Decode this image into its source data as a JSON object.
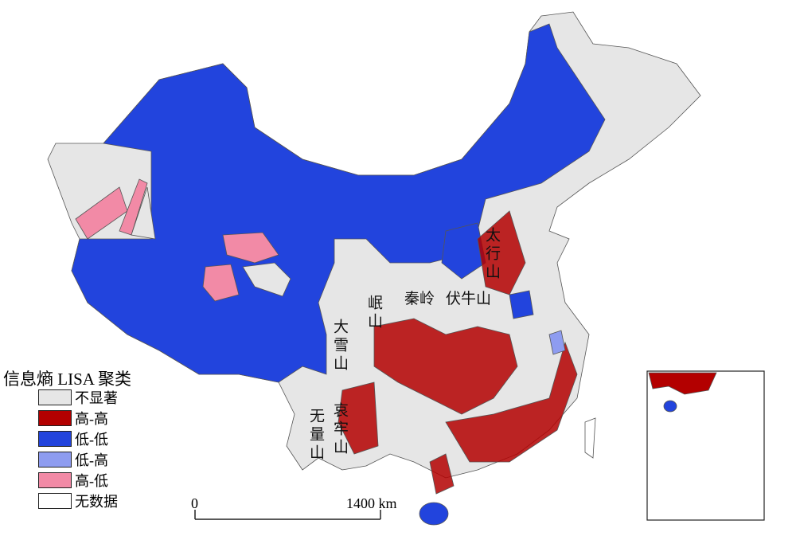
{
  "legend": {
    "title": "信息熵 LISA 聚类",
    "items": [
      {
        "label": "不显著",
        "color": "#e6e6e6"
      },
      {
        "label": "高-高",
        "color": "#b30000"
      },
      {
        "label": "低-低",
        "color": "#2244dd"
      },
      {
        "label": "低-高",
        "color": "#8e9cf0"
      },
      {
        "label": "高-低",
        "color": "#f28aa6"
      },
      {
        "label": "无数据",
        "color": "#ffffff"
      }
    ]
  },
  "labels": [
    "太行山",
    "伏牛山",
    "秦岭",
    "岷山",
    "大雪山",
    "哀牢山",
    "无量山"
  ],
  "scale_bar": {
    "start": "0",
    "end": "1400 km"
  }
}
